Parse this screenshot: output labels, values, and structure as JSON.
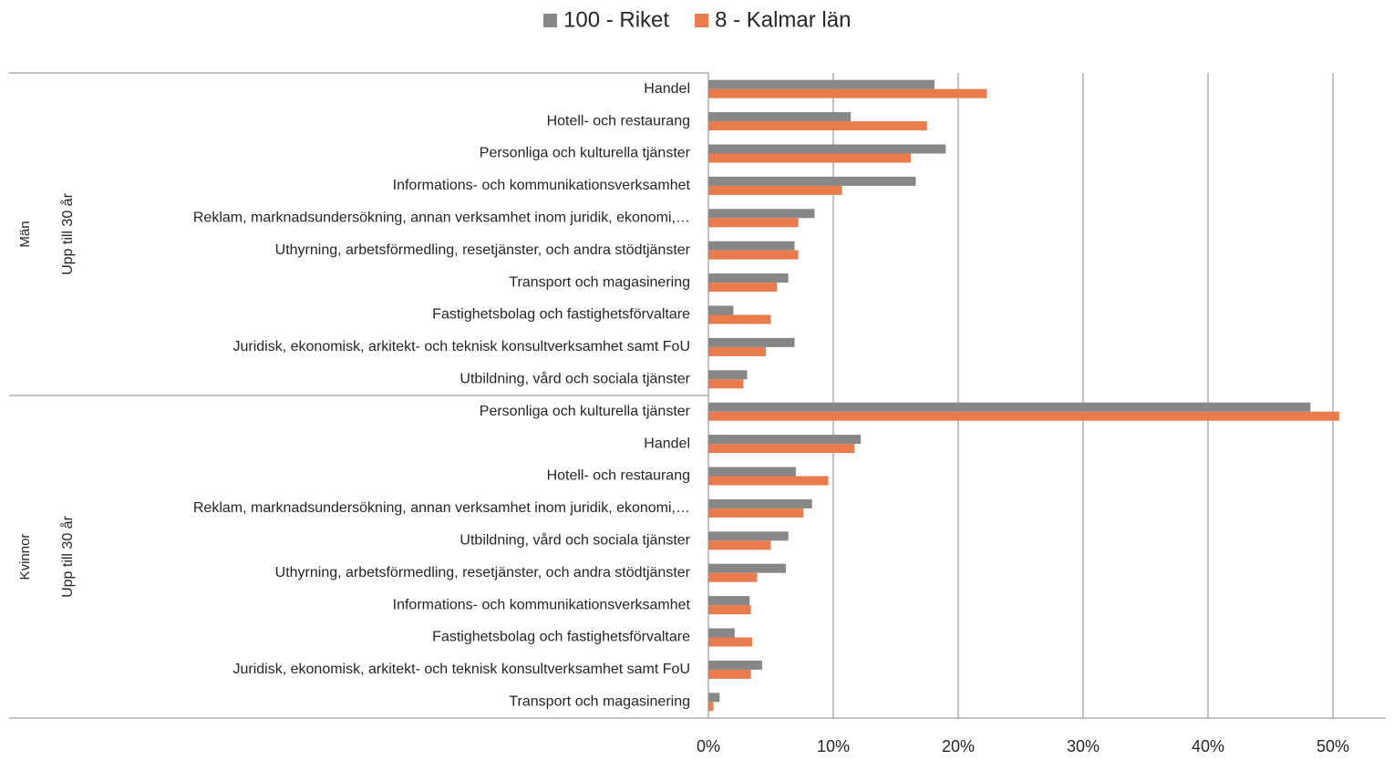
{
  "chart_data": {
    "type": "bar",
    "orientation": "horizontal",
    "legend": "top",
    "groups": [
      {
        "name": "Män",
        "subgroups": [
          {
            "name": "Upp till 30 år",
            "categories": [
              "Handel",
              "Hotell- och restaurang",
              "Personliga och kulturella tjänster",
              "Informations- och kommunikationsverksamhet",
              "Reklam, marknadsundersökning, annan verksamhet inom juridik, ekonomi,…",
              "Uthyrning, arbetsförmedling, resetjänster, och andra stödtjänster",
              "Transport och magasinering",
              "Fastighetsbolag och fastighetsförvaltare",
              "Juridisk, ekonomisk, arkitekt- och teknisk konsultverksamhet samt FoU",
              "Utbildning, vård och sociala tjänster"
            ]
          }
        ]
      },
      {
        "name": "Kvinnor",
        "subgroups": [
          {
            "name": "Upp till 30 år",
            "categories": [
              "Personliga och kulturella tjänster",
              "Handel",
              "Hotell- och restaurang",
              "Reklam, marknadsundersökning, annan verksamhet inom juridik, ekonomi,…",
              "Utbildning, vård och sociala tjänster",
              "Uthyrning, arbetsförmedling, resetjänster, och andra stödtjänster",
              "Informations- och kommunikationsverksamhet",
              "Fastighetsbolag och fastighetsförvaltare",
              "Juridisk, ekonomisk, arkitekt- och teknisk konsultverksamhet samt FoU",
              "Transport och magasinering"
            ]
          }
        ]
      }
    ],
    "series": [
      {
        "name": "100 - Riket",
        "color": "#878787",
        "values": [
          18.1,
          11.4,
          19.0,
          16.6,
          8.5,
          6.9,
          6.4,
          2.0,
          6.9,
          3.1,
          48.2,
          12.2,
          7.0,
          8.3,
          6.4,
          6.2,
          3.3,
          2.1,
          4.3,
          0.9
        ]
      },
      {
        "name": "8 - Kalmar län",
        "color": "#ea7b4c",
        "values": [
          22.3,
          17.5,
          16.2,
          10.7,
          7.2,
          7.2,
          5.5,
          5.0,
          4.6,
          2.8,
          50.5,
          11.7,
          9.6,
          7.6,
          5.0,
          3.9,
          3.4,
          3.5,
          3.4,
          0.4
        ]
      }
    ],
    "xlim": [
      0,
      50
    ],
    "xticks": [
      {
        "value": 0,
        "label": "0%"
      },
      {
        "value": 10,
        "label": "10%"
      },
      {
        "value": 20,
        "label": "20%"
      },
      {
        "value": 30,
        "label": "30%"
      },
      {
        "value": 40,
        "label": "40%"
      },
      {
        "value": 50,
        "label": "50%"
      }
    ],
    "grid": true
  }
}
